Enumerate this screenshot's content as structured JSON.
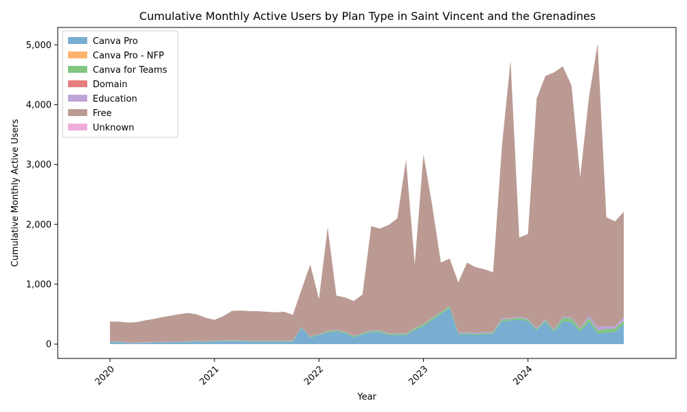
{
  "chart_data": {
    "type": "area",
    "stacked": true,
    "title": "Cumulative Monthly Active Users by Plan Type in Saint Vincent and the Grenadines",
    "xlabel": "Year",
    "ylabel": "Cumulative Monthly Active Users",
    "xlim": [
      "2019-07",
      "2025-06"
    ],
    "ylim": [
      -240,
      5290
    ],
    "yticks": [
      0,
      1000,
      2000,
      3000,
      4000,
      5000
    ],
    "ytick_labels": [
      "0",
      "1,000",
      "2,000",
      "3,000",
      "4,000",
      "5,000"
    ],
    "xticks": [
      "2020-01",
      "2021-01",
      "2022-01",
      "2023-01",
      "2024-01"
    ],
    "xtick_labels": [
      "2020",
      "2021",
      "2022",
      "2023",
      "2024"
    ],
    "legend_position": "upper-left",
    "grid": false,
    "x": [
      "2020-01",
      "2020-02",
      "2020-03",
      "2020-04",
      "2020-05",
      "2020-06",
      "2020-07",
      "2020-08",
      "2020-09",
      "2020-10",
      "2020-11",
      "2020-12",
      "2021-01",
      "2021-02",
      "2021-03",
      "2021-04",
      "2021-05",
      "2021-06",
      "2021-07",
      "2021-08",
      "2021-09",
      "2021-10",
      "2021-11",
      "2021-12",
      "2022-01",
      "2022-02",
      "2022-03",
      "2022-04",
      "2022-05",
      "2022-06",
      "2022-07",
      "2022-08",
      "2022-09",
      "2022-10",
      "2022-11",
      "2022-12",
      "2023-01",
      "2023-02",
      "2023-03",
      "2023-04",
      "2023-05",
      "2023-06",
      "2023-07",
      "2023-08",
      "2023-09",
      "2023-10",
      "2023-11",
      "2023-12",
      "2024-01",
      "2024-02",
      "2024-03",
      "2024-04",
      "2024-05",
      "2024-06",
      "2024-07",
      "2024-08",
      "2024-09",
      "2024-10",
      "2024-11",
      "2024-12"
    ],
    "series": [
      {
        "name": "Canva Pro",
        "color": "#1f77b4",
        "values": [
          25,
          30,
          15,
          15,
          20,
          25,
          25,
          30,
          30,
          30,
          45,
          30,
          40,
          45,
          45,
          45,
          40,
          40,
          40,
          40,
          40,
          40,
          270,
          110,
          150,
          190,
          210,
          180,
          110,
          160,
          200,
          200,
          150,
          150,
          150,
          230,
          300,
          400,
          500,
          600,
          160,
          160,
          155,
          160,
          170,
          380,
          390,
          410,
          380,
          230,
          370,
          200,
          380,
          370,
          210,
          370,
          180,
          190,
          200,
          330
        ]
      },
      {
        "name": "Canva Pro - NFP",
        "color": "#ff7f0e",
        "values": [
          0,
          0,
          0,
          0,
          0,
          0,
          0,
          0,
          0,
          0,
          0,
          0,
          0,
          0,
          0,
          0,
          0,
          0,
          0,
          0,
          0,
          0,
          0,
          0,
          0,
          0,
          0,
          0,
          0,
          0,
          0,
          0,
          0,
          0,
          0,
          0,
          0,
          0,
          0,
          0,
          0,
          0,
          0,
          0,
          0,
          0,
          0,
          0,
          0,
          0,
          0,
          0,
          0,
          0,
          0,
          0,
          0,
          0,
          0,
          0
        ]
      },
      {
        "name": "Canva for Teams",
        "color": "#2ca02c",
        "values": [
          10,
          10,
          5,
          5,
          5,
          5,
          5,
          5,
          5,
          10,
          10,
          10,
          10,
          10,
          10,
          10,
          10,
          10,
          10,
          10,
          10,
          10,
          10,
          10,
          10,
          20,
          20,
          20,
          20,
          20,
          20,
          20,
          20,
          20,
          20,
          30,
          30,
          30,
          30,
          30,
          20,
          20,
          20,
          20,
          20,
          30,
          30,
          30,
          30,
          20,
          30,
          30,
          60,
          60,
          40,
          60,
          50,
          60,
          60,
          60
        ]
      },
      {
        "name": "Domain",
        "color": "#d62728",
        "values": [
          0,
          0,
          0,
          0,
          0,
          0,
          0,
          0,
          0,
          0,
          0,
          0,
          0,
          0,
          0,
          0,
          0,
          0,
          0,
          0,
          0,
          0,
          0,
          0,
          0,
          0,
          0,
          0,
          0,
          0,
          0,
          0,
          0,
          0,
          0,
          0,
          0,
          0,
          0,
          0,
          0,
          0,
          0,
          0,
          0,
          0,
          0,
          0,
          0,
          0,
          0,
          0,
          0,
          0,
          0,
          0,
          0,
          0,
          0,
          0
        ]
      },
      {
        "name": "Education",
        "color": "#9467bd",
        "values": [
          10,
          10,
          10,
          10,
          10,
          10,
          10,
          10,
          10,
          10,
          10,
          10,
          10,
          10,
          10,
          10,
          10,
          10,
          10,
          10,
          10,
          10,
          10,
          10,
          10,
          10,
          10,
          10,
          10,
          10,
          10,
          10,
          10,
          10,
          10,
          10,
          10,
          10,
          10,
          10,
          20,
          20,
          20,
          20,
          20,
          20,
          20,
          20,
          20,
          20,
          20,
          20,
          20,
          20,
          20,
          50,
          60,
          50,
          40,
          60
        ]
      },
      {
        "name": "Free",
        "color": "#8c564b",
        "values": [
          330,
          325,
          330,
          335,
          360,
          380,
          410,
          430,
          455,
          470,
          430,
          390,
          345,
          400,
          490,
          495,
          490,
          490,
          480,
          470,
          480,
          430,
          620,
          1200,
          580,
          1730,
          570,
          570,
          580,
          640,
          1740,
          1700,
          1810,
          1920,
          2900,
          1060,
          2830,
          1880,
          820,
          790,
          830,
          1160,
          1090,
          1050,
          990,
          2860,
          4300,
          1320,
          1410,
          3830,
          4060,
          4290,
          4180,
          3870,
          2520,
          3640,
          4730,
          1820,
          1750,
          1760
        ]
      },
      {
        "name": "Unknown",
        "color": "#e377c2",
        "values": [
          0,
          0,
          0,
          0,
          0,
          0,
          0,
          0,
          0,
          0,
          0,
          0,
          0,
          0,
          0,
          0,
          0,
          0,
          0,
          0,
          0,
          0,
          0,
          0,
          0,
          0,
          0,
          0,
          0,
          0,
          0,
          0,
          0,
          0,
          0,
          0,
          0,
          0,
          0,
          0,
          0,
          0,
          0,
          0,
          0,
          0,
          0,
          0,
          0,
          0,
          0,
          0,
          0,
          0,
          0,
          0,
          0,
          0,
          0,
          0
        ]
      }
    ]
  }
}
